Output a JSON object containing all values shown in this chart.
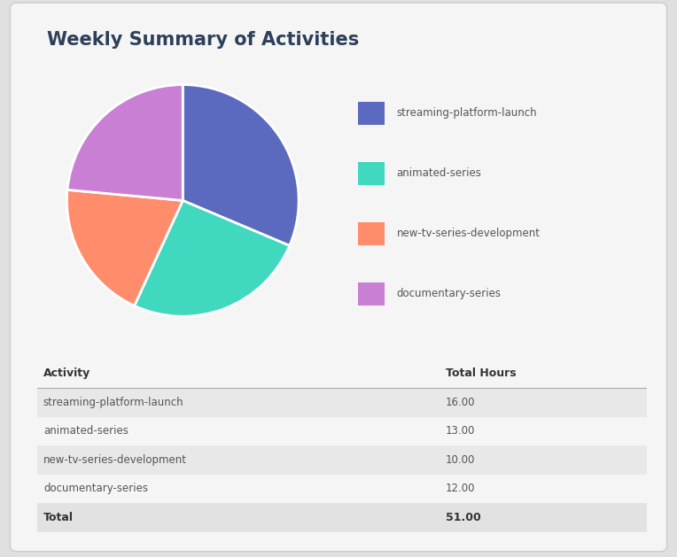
{
  "title": "Weekly Summary of Activities",
  "title_color": "#2d4059",
  "background_outer": "#e0e0e0",
  "background_card": "#f5f5f5",
  "pie_values": [
    16,
    13,
    10,
    12
  ],
  "pie_colors": [
    "#5b6abf",
    "#40d9c0",
    "#ff8c6b",
    "#c97fd4"
  ],
  "legend_labels": [
    "streaming-platform-launch",
    "animated-series",
    "new-tv-series-development",
    "documentary-series"
  ],
  "table_headers": [
    "Activity",
    "Total Hours"
  ],
  "table_rows": [
    [
      "streaming-platform-launch",
      "16.00"
    ],
    [
      "animated-series",
      "13.00"
    ],
    [
      "new-tv-series-development",
      "10.00"
    ],
    [
      "documentary-series",
      "12.00"
    ]
  ],
  "table_total": [
    "Total",
    "51.00"
  ],
  "row_colors_alt": [
    "#e8e8e8",
    "#f5f5f5"
  ],
  "total_row_color": "#e2e2e2",
  "header_line_color": "#aaaaaa",
  "text_color_dark": "#555555",
  "text_color_header": "#333333",
  "fig_width": 7.64,
  "fig_height": 6.29,
  "startangle": 90
}
